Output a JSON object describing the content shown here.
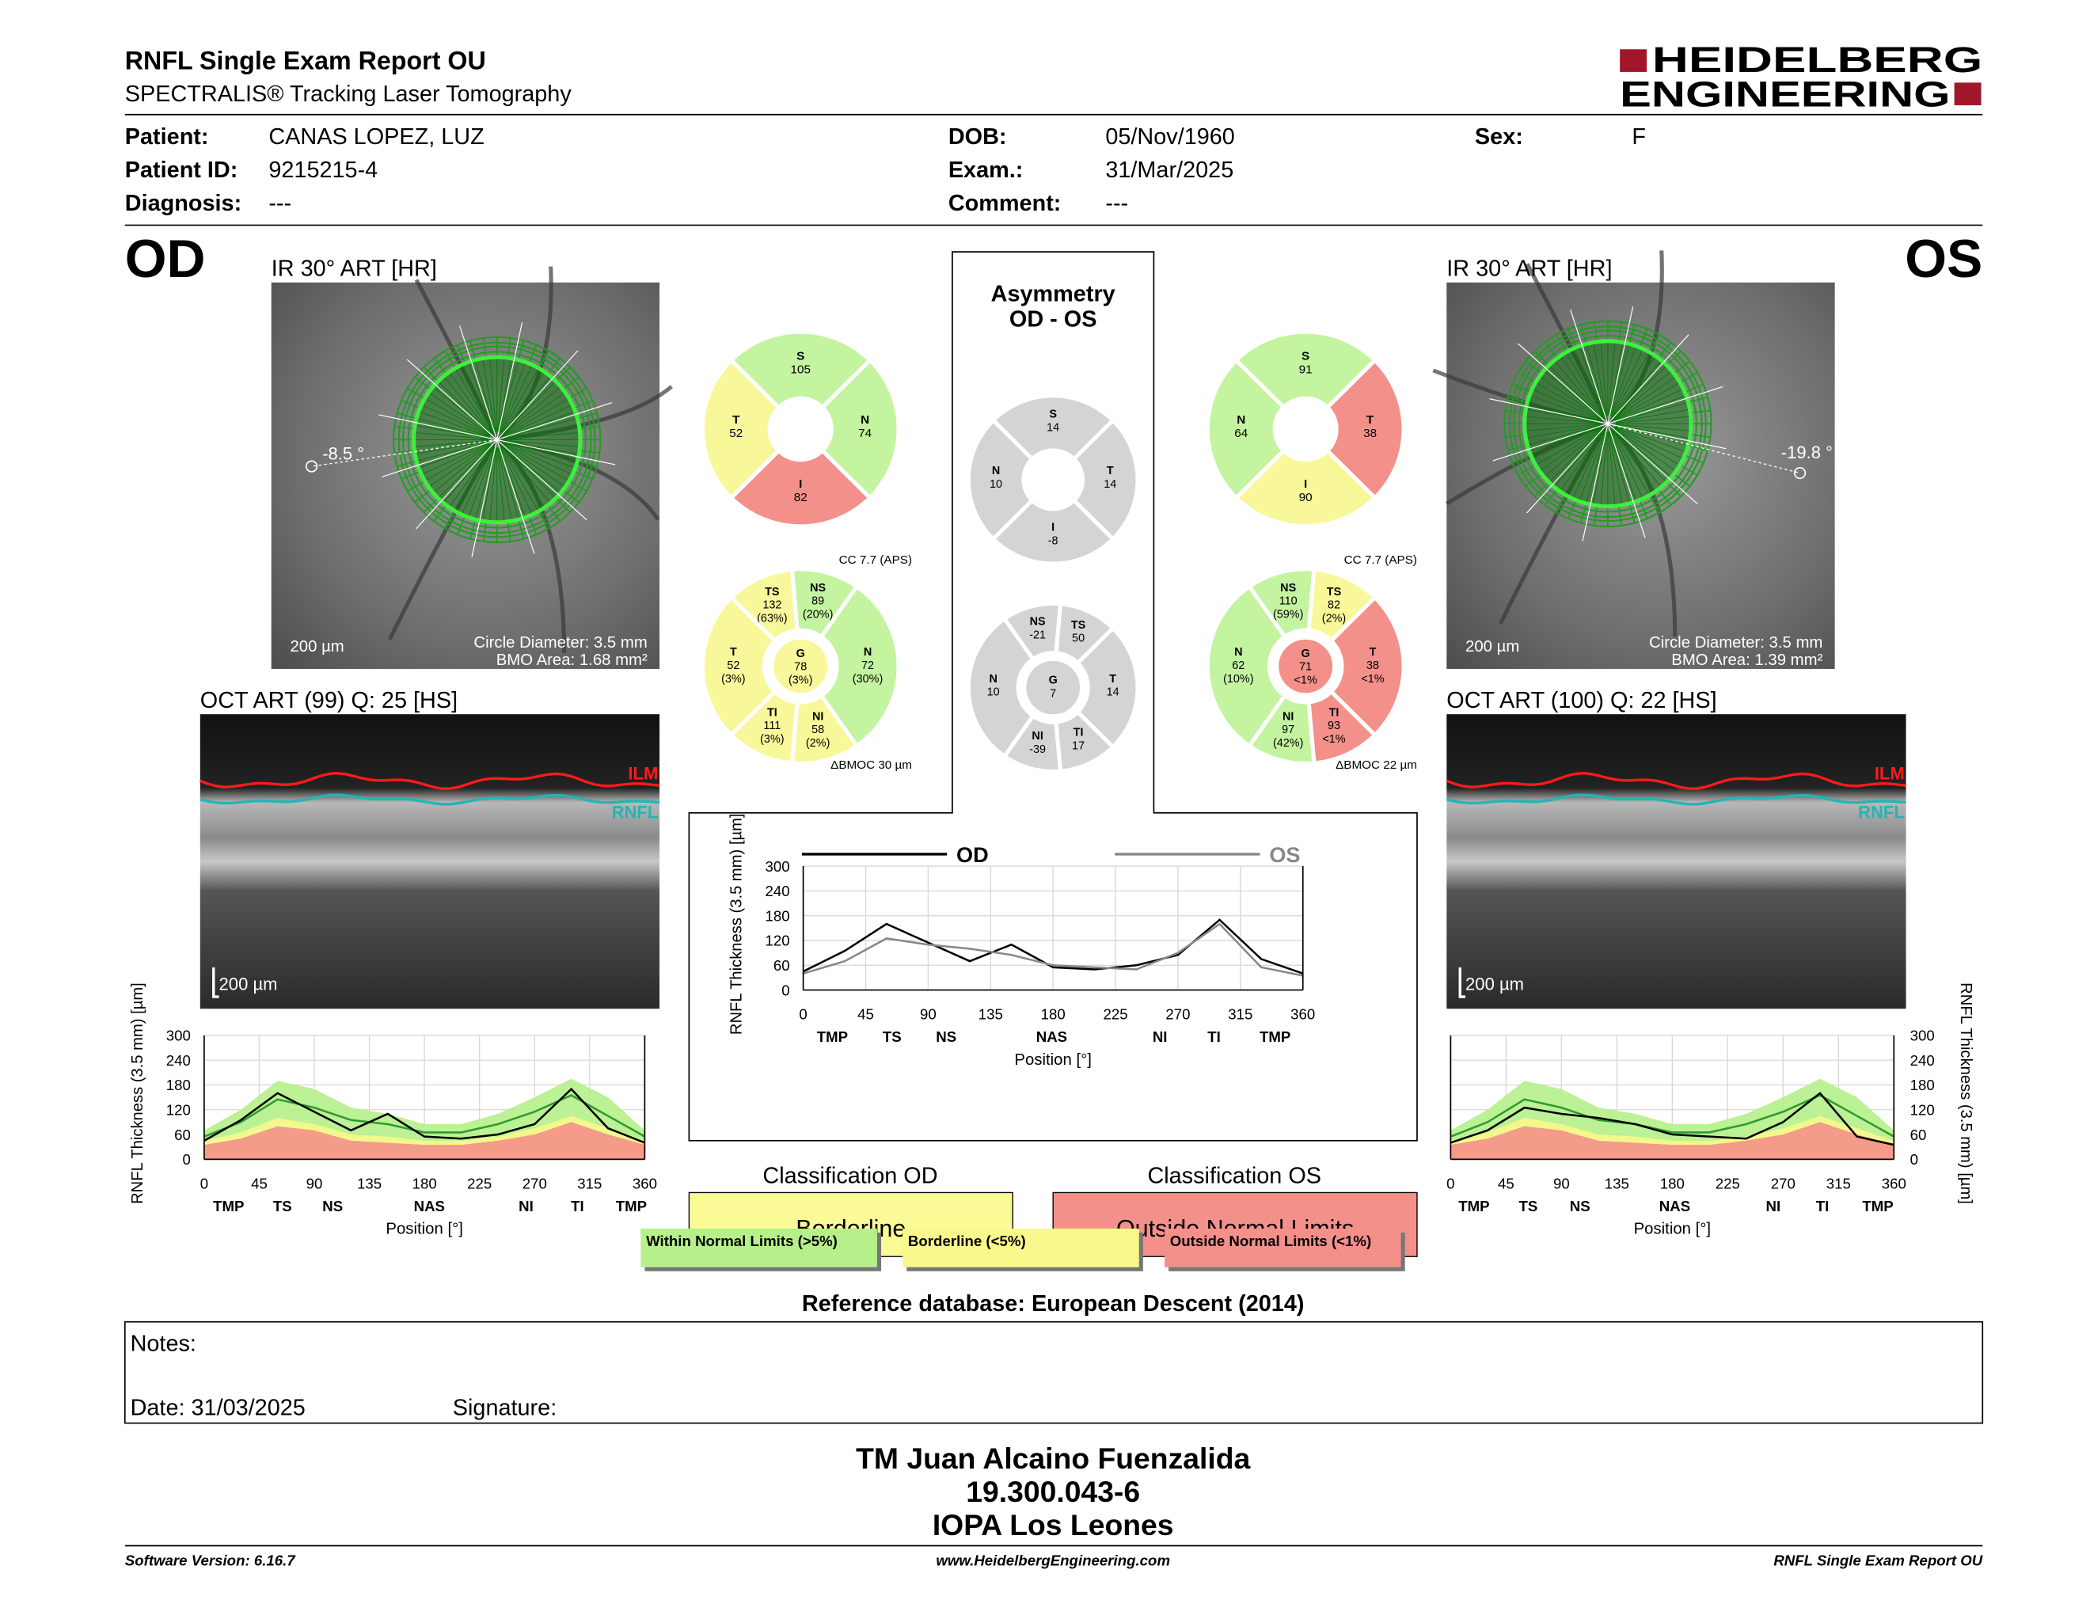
{
  "header": {
    "title": "RNFL Single Exam Report OU",
    "subtitle": "SPECTRALIS® Tracking Laser Tomography",
    "logo": [
      "HEIDELBERG",
      "ENGINEERING"
    ]
  },
  "patient": {
    "fields": [
      {
        "label": "Patient:",
        "value": "CANAS LOPEZ, LUZ"
      },
      {
        "label": "Patient ID:",
        "value": "9215215-4"
      },
      {
        "label": "Diagnosis:",
        "value": "---"
      },
      {
        "label": "DOB:",
        "value": "05/Nov/1960"
      },
      {
        "label": "Exam.:",
        "value": "31/Mar/2025"
      },
      {
        "label": "Comment:",
        "value": "---"
      },
      {
        "label": "Sex:",
        "value": "F"
      }
    ]
  },
  "od": {
    "eye": "OD",
    "ir": {
      "title": "IR 30° ART [HR]",
      "angle": "-8.5 °",
      "scale": "200 µm",
      "circle": "Circle Diameter: 3.5 mm",
      "bmo": "BMO Area: 1.68 mm²"
    },
    "oct": {
      "title": "OCT ART (99) Q: 25 [HS]",
      "ilm": "ILM",
      "rnfl": "RNFL",
      "scale": "200 µm"
    },
    "quadrants": [
      {
        "label": "S",
        "value": 105,
        "color": "#c4f4a0"
      },
      {
        "label": "T",
        "value": 52,
        "color": "#f8f89a"
      },
      {
        "label": "N",
        "value": 74,
        "color": "#c4f4a0"
      },
      {
        "label": "I",
        "value": 82,
        "color": "#f4908a"
      }
    ],
    "sectors": [
      {
        "label": "TS",
        "value": 132,
        "pct": "(63%)",
        "color": "#f8f89a"
      },
      {
        "label": "NS",
        "value": 89,
        "pct": "(20%)",
        "color": "#c4f4a0"
      },
      {
        "label": "T",
        "value": 52,
        "pct": "(3%)",
        "color": "#f8f89a"
      },
      {
        "label": "N",
        "value": 72,
        "pct": "(30%)",
        "color": "#c4f4a0"
      },
      {
        "label": "TI",
        "value": 111,
        "pct": "(3%)",
        "color": "#f8f89a"
      },
      {
        "label": "NI",
        "value": 58,
        "pct": "(2%)",
        "color": "#f8f89a"
      }
    ],
    "center": {
      "label": "G",
      "value": 78,
      "pct": "(3%)",
      "color": "#f8f89a"
    },
    "cc": "CC 7.7 (APS)",
    "bmoc": "ΔBMOC 30 µm",
    "classification": {
      "title": "Classification OD",
      "result": "Borderline",
      "color": "#fafa96"
    }
  },
  "os": {
    "eye": "OS",
    "ir": {
      "title": "IR 30° ART [HR]",
      "angle": "-19.8 °",
      "scale": "200 µm",
      "circle": "Circle Diameter: 3.5 mm",
      "bmo": "BMO Area: 1.39 mm²"
    },
    "oct": {
      "title": "OCT ART (100) Q: 22 [HS]",
      "ilm": "ILM",
      "rnfl": "RNFL",
      "scale": "200 µm"
    },
    "quadrants": [
      {
        "label": "S",
        "value": 91,
        "color": "#c4f4a0"
      },
      {
        "label": "N",
        "value": 64,
        "color": "#c4f4a0"
      },
      {
        "label": "T",
        "value": 38,
        "color": "#f4908a"
      },
      {
        "label": "I",
        "value": 90,
        "color": "#f8f89a"
      }
    ],
    "sectors": [
      {
        "label": "NS",
        "value": 110,
        "pct": "(59%)",
        "color": "#c4f4a0"
      },
      {
        "label": "TS",
        "value": 82,
        "pct": "(2%)",
        "color": "#f8f89a"
      },
      {
        "label": "N",
        "value": 62,
        "pct": "(10%)",
        "color": "#c4f4a0"
      },
      {
        "label": "T",
        "value": 38,
        "pct": "<1%",
        "color": "#f4908a"
      },
      {
        "label": "NI",
        "value": 97,
        "pct": "(42%)",
        "color": "#c4f4a0"
      },
      {
        "label": "TI",
        "value": 93,
        "pct": "<1%",
        "color": "#f4908a"
      }
    ],
    "center": {
      "label": "G",
      "value": 71,
      "pct": "<1%",
      "color": "#f4908a"
    },
    "cc": "CC 7.7 (APS)",
    "bmoc": "ΔBMOC 22 µm",
    "classification": {
      "title": "Classification OS",
      "result": "Outside Normal Limits",
      "color": "#f4908a"
    }
  },
  "asymmetry": {
    "title": "Asymmetry",
    "subtitle": "OD - OS",
    "color": "#d4d4d4",
    "quadrants": [
      {
        "label": "S",
        "value": 14
      },
      {
        "label": "N",
        "value": 10
      },
      {
        "label": "T",
        "value": 14
      },
      {
        "label": "I",
        "value": -8
      }
    ],
    "sectors": [
      {
        "label": "NS",
        "value": -21
      },
      {
        "label": "TS",
        "value": 50
      },
      {
        "label": "N",
        "value": 10
      },
      {
        "label": "T",
        "value": 14
      },
      {
        "label": "NI",
        "value": -39
      },
      {
        "label": "TI",
        "value": 17
      }
    ],
    "center": {
      "label": "G",
      "value": 7
    }
  },
  "legend": [
    {
      "label": "Within Normal Limits (>5%)",
      "color": "#b6f08a"
    },
    {
      "label": "Borderline (<5%)",
      "color": "#f8f88c"
    },
    {
      "label": "Outside Normal Limits (<1%)",
      "color": "#f4908a"
    }
  ],
  "reference": "Reference database: European Descent (2014)",
  "notes": {
    "label": "Notes:",
    "date": "Date: 31/03/2025",
    "signature": "Signature:"
  },
  "signature_block": [
    "TM Juan Alcaino Fuenzalida",
    "19.300.043-6",
    "IOPA Los Leones"
  ],
  "footer": {
    "left": "Software Version: 6.16.7",
    "center": "www.HeidelbergEngineering.com",
    "right": "RNFL Single Exam Report OU"
  },
  "chart_data": [
    {
      "type": "line",
      "xlabel": "Position [°]",
      "ylabel": "RNFL Thickness (3.5 mm) [µm]",
      "x": [
        0,
        30,
        60,
        90,
        120,
        150,
        180,
        210,
        240,
        270,
        300,
        330,
        360
      ],
      "xlim": [
        0,
        360
      ],
      "ylim": [
        0,
        300
      ],
      "xticks": [
        0,
        45,
        90,
        135,
        180,
        225,
        270,
        315,
        360
      ],
      "yticks": [
        0,
        60,
        120,
        180,
        240,
        300
      ],
      "grid": true,
      "sector_ticks": [
        {
          "value": 20,
          "label": "TMP"
        },
        {
          "value": 64,
          "label": "TS"
        },
        {
          "value": 105,
          "label": "NS"
        },
        {
          "value": 184,
          "label": "NAS"
        },
        {
          "value": 263,
          "label": "NI"
        },
        {
          "value": 305,
          "label": "TI"
        },
        {
          "value": 349,
          "label": "TMP"
        }
      ],
      "bands": [
        {
          "color": "#b6f08a",
          "values": [
            70,
            120,
            190,
            170,
            125,
            110,
            85,
            85,
            110,
            150,
            195,
            150,
            70
          ]
        },
        {
          "color": "#f8f88c",
          "values": [
            45,
            65,
            100,
            85,
            60,
            55,
            45,
            45,
            55,
            75,
            105,
            75,
            45
          ]
        },
        {
          "color": "#f4908a",
          "values": [
            35,
            50,
            80,
            70,
            45,
            40,
            35,
            35,
            45,
            60,
            90,
            60,
            35
          ]
        }
      ],
      "series": [
        {
          "color": "#2e9b2e",
          "values": [
            55,
            90,
            145,
            125,
            95,
            85,
            65,
            65,
            85,
            115,
            155,
            105,
            55
          ]
        },
        {
          "color": "#000000",
          "values": [
            45,
            95,
            160,
            115,
            70,
            110,
            55,
            50,
            60,
            85,
            170,
            75,
            40
          ]
        }
      ]
    },
    {
      "type": "line",
      "xlabel": "Position [°]",
      "ylabel": "RNFL Thickness (3.5 mm) [µm]",
      "x": [
        0,
        30,
        60,
        90,
        120,
        150,
        180,
        210,
        240,
        270,
        300,
        330,
        360
      ],
      "xlim": [
        0,
        360
      ],
      "ylim": [
        0,
        300
      ],
      "xticks": [
        0,
        45,
        90,
        135,
        180,
        225,
        270,
        315,
        360
      ],
      "yticks": [
        0,
        60,
        120,
        180,
        240,
        300
      ],
      "grid": true,
      "sector_ticks": [
        {
          "value": 19,
          "label": "TMP"
        },
        {
          "value": 63,
          "label": "TS"
        },
        {
          "value": 105,
          "label": "NS"
        },
        {
          "value": 182,
          "label": "NAS"
        },
        {
          "value": 262,
          "label": "NI"
        },
        {
          "value": 302,
          "label": "TI"
        },
        {
          "value": 347,
          "label": "TMP"
        }
      ],
      "bands": [
        {
          "color": "#b6f08a",
          "values": [
            70,
            120,
            190,
            170,
            125,
            110,
            85,
            85,
            110,
            150,
            195,
            150,
            70
          ]
        },
        {
          "color": "#f8f88c",
          "values": [
            45,
            65,
            100,
            85,
            60,
            55,
            45,
            45,
            55,
            75,
            105,
            75,
            45
          ]
        },
        {
          "color": "#f4908a",
          "values": [
            35,
            50,
            80,
            70,
            45,
            40,
            35,
            35,
            45,
            60,
            90,
            60,
            35
          ]
        }
      ],
      "series": [
        {
          "color": "#2e9b2e",
          "values": [
            55,
            90,
            145,
            125,
            95,
            85,
            65,
            65,
            85,
            115,
            155,
            105,
            55
          ]
        },
        {
          "color": "#000000",
          "values": [
            40,
            70,
            125,
            110,
            100,
            85,
            60,
            55,
            50,
            90,
            160,
            55,
            35
          ]
        }
      ]
    },
    {
      "type": "line",
      "xlabel": "Position [°]",
      "ylabel": "RNFL Thickness (3.5 mm) [µm]",
      "x": [
        0,
        30,
        60,
        90,
        120,
        150,
        180,
        210,
        240,
        270,
        300,
        330,
        360
      ],
      "xlim": [
        0,
        360
      ],
      "ylim": [
        0,
        300
      ],
      "xticks": [
        0,
        45,
        90,
        135,
        180,
        225,
        270,
        315,
        360
      ],
      "yticks": [
        0,
        60,
        120,
        180,
        240,
        300
      ],
      "grid": true,
      "sector_ticks": [
        {
          "value": 21,
          "label": "TMP"
        },
        {
          "value": 64,
          "label": "TS"
        },
        {
          "value": 103,
          "label": "NS"
        },
        {
          "value": 179,
          "label": "NAS"
        },
        {
          "value": 257,
          "label": "NI"
        },
        {
          "value": 296,
          "label": "TI"
        },
        {
          "value": 340,
          "label": "TMP"
        }
      ],
      "series": [
        {
          "name": "OD",
          "color": "#000000",
          "values": [
            45,
            95,
            160,
            115,
            70,
            110,
            55,
            50,
            60,
            85,
            170,
            75,
            40
          ]
        },
        {
          "name": "OS",
          "color": "#888888",
          "values": [
            40,
            70,
            125,
            110,
            100,
            85,
            60,
            55,
            50,
            90,
            160,
            55,
            35
          ]
        }
      ]
    }
  ]
}
